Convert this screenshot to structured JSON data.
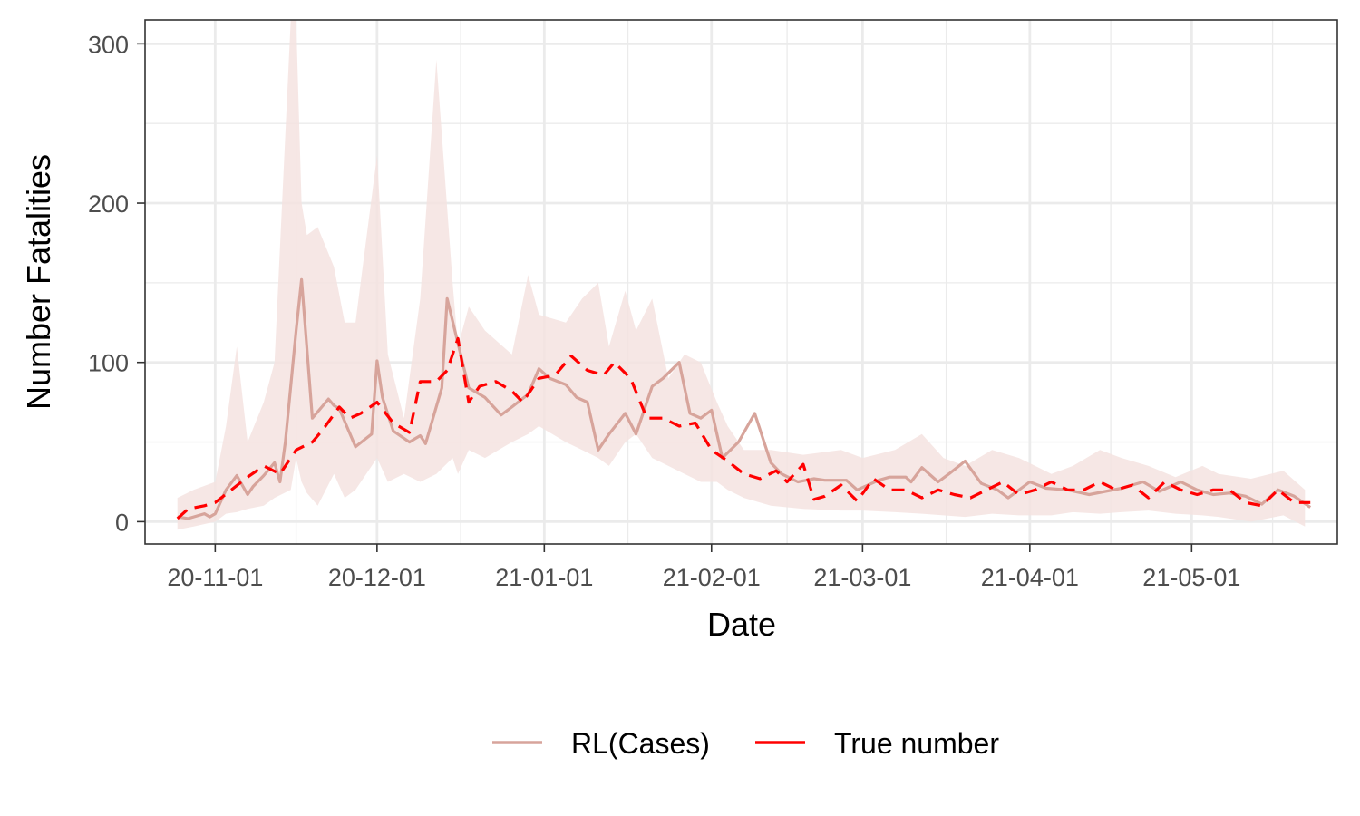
{
  "chart_data": {
    "type": "line",
    "xlabel": "Date",
    "ylabel": "Number Fatalities",
    "xlim": [
      "2020-10-19",
      "2021-05-28"
    ],
    "ylim": [
      -14,
      315
    ],
    "grid": true,
    "legend_position": "bottom",
    "x_ticks": [
      "2020-11-01",
      "2020-12-01",
      "2021-01-01",
      "2021-02-01",
      "2021-03-01",
      "2021-04-01",
      "2021-05-01"
    ],
    "x_tick_labels": [
      "20-11-01",
      "20-12-01",
      "21-01-01",
      "21-02-01",
      "21-03-01",
      "21-04-01",
      "21-05-01"
    ],
    "y_ticks": [
      0,
      100,
      200,
      300
    ],
    "y_tick_labels": [
      "0",
      "100",
      "200",
      "300"
    ],
    "ribbon": {
      "color": "#f5e3e1",
      "x": [
        "2020-10-25",
        "2020-10-28",
        "2020-11-01",
        "2020-11-03",
        "2020-11-05",
        "2020-11-07",
        "2020-11-10",
        "2020-11-12",
        "2020-11-15",
        "2020-11-16",
        "2020-11-17",
        "2020-11-18",
        "2020-11-20",
        "2020-11-23",
        "2020-11-25",
        "2020-11-27",
        "2020-12-01",
        "2020-12-03",
        "2020-12-06",
        "2020-12-09",
        "2020-12-12",
        "2020-12-15",
        "2020-12-16",
        "2020-12-18",
        "2020-12-21",
        "2020-12-26",
        "2020-12-29",
        "2020-12-31",
        "2021-01-05",
        "2021-01-08",
        "2021-01-11",
        "2021-01-13",
        "2021-01-16",
        "2021-01-18",
        "2021-01-21",
        "2021-01-24",
        "2021-01-27",
        "2021-01-30",
        "2021-02-02",
        "2021-02-04",
        "2021-02-07",
        "2021-02-12",
        "2021-02-18",
        "2021-02-25",
        "2021-03-01",
        "2021-03-07",
        "2021-03-12",
        "2021-03-16",
        "2021-03-20",
        "2021-03-25",
        "2021-03-30",
        "2021-04-05",
        "2021-04-09",
        "2021-04-14",
        "2021-04-18",
        "2021-04-23",
        "2021-04-28",
        "2021-05-03",
        "2021-05-06",
        "2021-05-12",
        "2021-05-18",
        "2021-05-22"
      ],
      "lower": [
        -5,
        -3,
        0,
        5,
        6,
        8,
        10,
        15,
        20,
        40,
        25,
        18,
        10,
        30,
        15,
        20,
        40,
        25,
        30,
        25,
        30,
        40,
        30,
        45,
        40,
        50,
        55,
        60,
        50,
        45,
        40,
        35,
        50,
        55,
        40,
        35,
        30,
        25,
        25,
        20,
        15,
        10,
        8,
        7,
        7,
        6,
        5,
        4,
        3,
        5,
        4,
        4,
        6,
        5,
        6,
        7,
        5,
        4,
        3,
        0,
        4,
        -3
      ],
      "upper": [
        15,
        20,
        25,
        60,
        110,
        50,
        75,
        100,
        330,
        330,
        200,
        180,
        185,
        160,
        125,
        125,
        230,
        105,
        65,
        140,
        290,
        150,
        110,
        135,
        120,
        105,
        155,
        130,
        125,
        140,
        150,
        110,
        145,
        120,
        140,
        90,
        105,
        100,
        75,
        60,
        45,
        45,
        42,
        45,
        40,
        45,
        55,
        40,
        35,
        45,
        40,
        30,
        35,
        45,
        40,
        35,
        28,
        35,
        30,
        27,
        32,
        20
      ]
    },
    "series": [
      {
        "name": "RL(Cases)",
        "color": "#d7a49b",
        "dash": "solid",
        "x": [
          "2020-10-25",
          "2020-10-27",
          "2020-10-30",
          "2020-10-31",
          "2020-11-01",
          "2020-11-03",
          "2020-11-05",
          "2020-11-07",
          "2020-11-08",
          "2020-11-10",
          "2020-11-12",
          "2020-11-13",
          "2020-11-14",
          "2020-11-16",
          "2020-11-17",
          "2020-11-19",
          "2020-11-22",
          "2020-11-23",
          "2020-11-24",
          "2020-11-27",
          "2020-11-30",
          "2020-12-01",
          "2020-12-02",
          "2020-12-04",
          "2020-12-07",
          "2020-12-08",
          "2020-12-09",
          "2020-12-10",
          "2020-12-13",
          "2020-12-14",
          "2020-12-18",
          "2020-12-21",
          "2020-12-24",
          "2020-12-26",
          "2020-12-29",
          "2020-12-31",
          "2021-01-02",
          "2021-01-05",
          "2021-01-07",
          "2021-01-09",
          "2021-01-11",
          "2021-01-13",
          "2021-01-16",
          "2021-01-18",
          "2021-01-21",
          "2021-01-23",
          "2021-01-26",
          "2021-01-28",
          "2021-01-30",
          "2021-02-01",
          "2021-02-03",
          "2021-02-06",
          "2021-02-09",
          "2021-02-12",
          "2021-02-14",
          "2021-02-17",
          "2021-02-20",
          "2021-02-22",
          "2021-02-26",
          "2021-02-28",
          "2021-03-04",
          "2021-03-06",
          "2021-03-09",
          "2021-03-10",
          "2021-03-12",
          "2021-03-15",
          "2021-03-17",
          "2021-03-20",
          "2021-03-23",
          "2021-03-26",
          "2021-03-28",
          "2021-04-01",
          "2021-04-04",
          "2021-04-08",
          "2021-04-12",
          "2021-04-15",
          "2021-04-18",
          "2021-04-22",
          "2021-04-25",
          "2021-04-29",
          "2021-05-02",
          "2021-05-05",
          "2021-05-08",
          "2021-05-11",
          "2021-05-14",
          "2021-05-17",
          "2021-05-20",
          "2021-05-23"
        ],
        "values": [
          3,
          2,
          5,
          3,
          5,
          20,
          29,
          17,
          22,
          29,
          37,
          25,
          50,
          120,
          152,
          65,
          77,
          73,
          71,
          47,
          55,
          101,
          78,
          57,
          50,
          52,
          54,
          49,
          84,
          140,
          84,
          78,
          67,
          72,
          80,
          96,
          90,
          86,
          78,
          75,
          45,
          55,
          68,
          55,
          85,
          90,
          100,
          68,
          65,
          70,
          40,
          50,
          68,
          37,
          30,
          25,
          27,
          26,
          26,
          20,
          26,
          28,
          28,
          25,
          34,
          25,
          30,
          38,
          24,
          20,
          15,
          25,
          21,
          20,
          17,
          19,
          21,
          25,
          19,
          25,
          20,
          17,
          18,
          16,
          11,
          20,
          16,
          9
        ]
      },
      {
        "name": "True number",
        "color": "#ff0000",
        "dash": "dashed",
        "x": [
          "2020-10-25",
          "2020-10-27",
          "2020-10-30",
          "2020-11-01",
          "2020-11-04",
          "2020-11-07",
          "2020-11-10",
          "2020-11-13",
          "2020-11-16",
          "2020-11-19",
          "2020-11-21",
          "2020-11-24",
          "2020-11-26",
          "2020-11-28",
          "2020-12-01",
          "2020-12-04",
          "2020-12-07",
          "2020-12-09",
          "2020-12-12",
          "2020-12-14",
          "2020-12-16",
          "2020-12-18",
          "2020-12-20",
          "2020-12-23",
          "2020-12-26",
          "2020-12-28",
          "2020-12-31",
          "2021-01-03",
          "2021-01-06",
          "2021-01-09",
          "2021-01-12",
          "2021-01-14",
          "2021-01-17",
          "2021-01-20",
          "2021-01-23",
          "2021-01-26",
          "2021-01-29",
          "2021-02-01",
          "2021-02-04",
          "2021-02-07",
          "2021-02-10",
          "2021-02-13",
          "2021-02-15",
          "2021-02-18",
          "2021-02-20",
          "2021-02-22",
          "2021-02-25",
          "2021-02-28",
          "2021-03-03",
          "2021-03-06",
          "2021-03-09",
          "2021-03-12",
          "2021-03-15",
          "2021-03-18",
          "2021-03-21",
          "2021-03-24",
          "2021-03-27",
          "2021-03-30",
          "2021-04-02",
          "2021-04-05",
          "2021-04-08",
          "2021-04-11",
          "2021-04-14",
          "2021-04-17",
          "2021-04-20",
          "2021-04-23",
          "2021-04-26",
          "2021-04-29",
          "2021-05-02",
          "2021-05-05",
          "2021-05-08",
          "2021-05-11",
          "2021-05-14",
          "2021-05-17",
          "2021-05-20",
          "2021-05-23"
        ],
        "values": [
          2,
          8,
          10,
          12,
          20,
          28,
          35,
          30,
          45,
          50,
          58,
          72,
          65,
          68,
          75,
          62,
          56,
          88,
          88,
          95,
          115,
          75,
          85,
          88,
          82,
          75,
          90,
          92,
          104,
          95,
          92,
          100,
          90,
          65,
          65,
          60,
          62,
          45,
          38,
          30,
          27,
          32,
          25,
          36,
          14,
          16,
          23,
          13,
          27,
          20,
          20,
          15,
          20,
          17,
          15,
          20,
          25,
          17,
          20,
          25,
          20,
          20,
          25,
          20,
          23,
          15,
          25,
          20,
          17,
          20,
          20,
          12,
          10,
          20,
          12,
          12
        ]
      }
    ]
  }
}
